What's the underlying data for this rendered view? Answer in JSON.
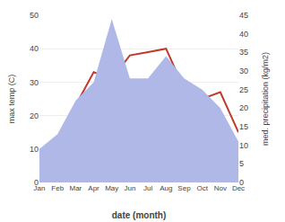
{
  "chart_data": {
    "type": "line",
    "categories": [
      "Jan",
      "Feb",
      "Mar",
      "Apr",
      "May",
      "Jun",
      "Jul",
      "Aug",
      "Sep",
      "Oct",
      "Nov",
      "Dec"
    ],
    "series": [
      {
        "type": "area",
        "axis": "y2",
        "color": "#b0b8e8",
        "values": [
          9,
          13,
          22,
          27,
          44,
          28,
          28,
          34,
          28,
          25,
          20,
          11
        ]
      },
      {
        "type": "line",
        "color": "#c0392b",
        "values": [
          7,
          13,
          23,
          33,
          31,
          38,
          39,
          40,
          28,
          25,
          27,
          15
        ]
      }
    ],
    "xlabel": "date (month)",
    "ylabel": "max temp (C)",
    "y2label": "med. precipitation (kg/m2)",
    "ylim": [
      0,
      50
    ],
    "yticks": [
      0,
      10,
      20,
      30,
      40,
      50
    ],
    "y2lim": [
      0,
      45
    ],
    "y2ticks": [
      0,
      5,
      10,
      15,
      20,
      25,
      30,
      35,
      40,
      45
    ],
    "grid": true
  }
}
